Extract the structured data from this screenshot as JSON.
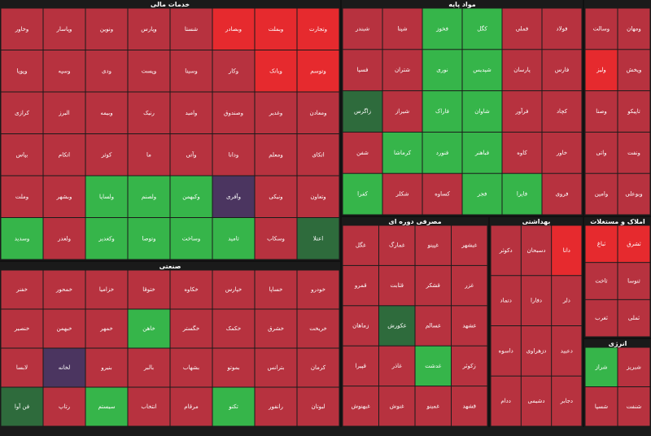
{
  "palette": {
    "r": "#b7323f",
    "b": "#e62a2e",
    "g": "#36b54a",
    "d": "#2e6b3c",
    "p": "#4b3560"
  },
  "sectors": [
    {
      "title": "خدمات مالی",
      "cols": 8,
      "tiles": [
        {
          "label": "وتجارت",
          "c": "b"
        },
        {
          "label": "وبملت",
          "c": "b"
        },
        {
          "label": "وبصادر",
          "c": "b"
        },
        {
          "label": "شستا",
          "c": "r"
        },
        {
          "label": "وپارس",
          "c": "r"
        },
        {
          "label": "ونوین",
          "c": "r"
        },
        {
          "label": "وپاسار",
          "c": "r"
        },
        {
          "label": "وخاور",
          "c": "r"
        },
        {
          "label": "وتوسم",
          "c": "b"
        },
        {
          "label": "وبانک",
          "c": "b"
        },
        {
          "label": "وکار",
          "c": "r"
        },
        {
          "label": "وسینا",
          "c": "r"
        },
        {
          "label": "وپست",
          "c": "r"
        },
        {
          "label": "ودی",
          "c": "r"
        },
        {
          "label": "وسپه",
          "c": "r"
        },
        {
          "label": "وپویا",
          "c": "r"
        },
        {
          "label": "ومعادن",
          "c": "r"
        },
        {
          "label": "وغدیر",
          "c": "r"
        },
        {
          "label": "وصندوق",
          "c": "r"
        },
        {
          "label": "وامید",
          "c": "r"
        },
        {
          "label": "رنیک",
          "c": "r"
        },
        {
          "label": "وبیمه",
          "c": "r"
        },
        {
          "label": "البرز",
          "c": "r"
        },
        {
          "label": "کرازی",
          "c": "r"
        },
        {
          "label": "اتکای",
          "c": "r"
        },
        {
          "label": "ومعلم",
          "c": "r"
        },
        {
          "label": "ودانا",
          "c": "r"
        },
        {
          "label": "وآتی",
          "c": "r"
        },
        {
          "label": "ما",
          "c": "r"
        },
        {
          "label": "کوثر",
          "c": "r"
        },
        {
          "label": "اتکام",
          "c": "r"
        },
        {
          "label": "بپاس",
          "c": "r"
        },
        {
          "label": "وتعاون",
          "c": "r"
        },
        {
          "label": "ونیکی",
          "c": "r"
        },
        {
          "label": "وآفری",
          "c": "p"
        },
        {
          "label": "وکبهمن",
          "c": "g"
        },
        {
          "label": "ولصنم",
          "c": "g"
        },
        {
          "label": "ولساپا",
          "c": "g"
        },
        {
          "label": "وبشهر",
          "c": "r"
        },
        {
          "label": "وملت",
          "c": "r"
        },
        {
          "label": "اعتلا",
          "c": "d"
        },
        {
          "label": "وسکاب",
          "c": "r"
        },
        {
          "label": "ثامید",
          "c": "g"
        },
        {
          "label": "وساخت",
          "c": "g"
        },
        {
          "label": "وتوصا",
          "c": "g"
        },
        {
          "label": "وکغدیر",
          "c": "g"
        },
        {
          "label": "ولغدر",
          "c": "r"
        },
        {
          "label": "وسدید",
          "c": "g"
        }
      ]
    },
    {
      "title": "مواد پایه",
      "cols": 6,
      "tiles": [
        {
          "label": "فولاد",
          "c": "r"
        },
        {
          "label": "فملی",
          "c": "r"
        },
        {
          "label": "کگل",
          "c": "g"
        },
        {
          "label": "فخوز",
          "c": "g"
        },
        {
          "label": "شپنا",
          "c": "r"
        },
        {
          "label": "شبندر",
          "c": "r"
        },
        {
          "label": "فارس",
          "c": "r"
        },
        {
          "label": "پارسان",
          "c": "r"
        },
        {
          "label": "شپدیس",
          "c": "g"
        },
        {
          "label": "نوری",
          "c": "g"
        },
        {
          "label": "شتران",
          "c": "r"
        },
        {
          "label": "فسپا",
          "c": "r"
        },
        {
          "label": "کچاد",
          "c": "r"
        },
        {
          "label": "فرآور",
          "c": "r"
        },
        {
          "label": "شاوان",
          "c": "g"
        },
        {
          "label": "فاراک",
          "c": "g"
        },
        {
          "label": "شیراز",
          "c": "r"
        },
        {
          "label": "زاگرس",
          "c": "d"
        },
        {
          "label": "خاور",
          "c": "r"
        },
        {
          "label": "کاوه",
          "c": "r"
        },
        {
          "label": "فباهنر",
          "c": "g"
        },
        {
          "label": "فنورد",
          "c": "g"
        },
        {
          "label": "کرماشا",
          "c": "g"
        },
        {
          "label": "شفن",
          "c": "r"
        },
        {
          "label": "فروی",
          "c": "r"
        },
        {
          "label": "فایرا",
          "c": "g"
        },
        {
          "label": "فجر",
          "c": "g"
        },
        {
          "label": "کساوه",
          "c": "r"
        },
        {
          "label": "شکلر",
          "c": "r"
        },
        {
          "label": "کفرا",
          "c": "g"
        }
      ]
    },
    {
      "cols": 2,
      "tiles": [
        {
          "label": "ومهان",
          "c": "r"
        },
        {
          "label": "وسالت",
          "c": "r"
        },
        {
          "label": "وپخش",
          "c": "r"
        },
        {
          "label": "ولیز",
          "c": "b"
        },
        {
          "label": "تاپیکو",
          "c": "r"
        },
        {
          "label": "وصنا",
          "c": "r"
        },
        {
          "label": "ونفت",
          "c": "r"
        },
        {
          "label": "واتی",
          "c": "r"
        },
        {
          "label": "وبوعلی",
          "c": "r"
        },
        {
          "label": "وامین",
          "c": "r"
        }
      ]
    },
    {
      "title": "صنعتی",
      "cols": 8,
      "tiles": [
        {
          "label": "خودرو",
          "c": "r"
        },
        {
          "label": "خساپا",
          "c": "r"
        },
        {
          "label": "خپارس",
          "c": "r"
        },
        {
          "label": "خکاوه",
          "c": "r"
        },
        {
          "label": "ختوقا",
          "c": "r"
        },
        {
          "label": "خزامیا",
          "c": "r"
        },
        {
          "label": "خمحور",
          "c": "r"
        },
        {
          "label": "خفنر",
          "c": "r"
        },
        {
          "label": "خریخت",
          "c": "r"
        },
        {
          "label": "خشرق",
          "c": "r"
        },
        {
          "label": "خکمک",
          "c": "r"
        },
        {
          "label": "خگستر",
          "c": "r"
        },
        {
          "label": "خاهن",
          "c": "g"
        },
        {
          "label": "خمهر",
          "c": "r"
        },
        {
          "label": "خبهمن",
          "c": "r"
        },
        {
          "label": "خنصیر",
          "c": "r"
        },
        {
          "label": "کرمان",
          "c": "r"
        },
        {
          "label": "بترانس",
          "c": "r"
        },
        {
          "label": "بموتو",
          "c": "r"
        },
        {
          "label": "بشهاب",
          "c": "r"
        },
        {
          "label": "بالبر",
          "c": "r"
        },
        {
          "label": "بنیرو",
          "c": "r"
        },
        {
          "label": "لخانه",
          "c": "p"
        },
        {
          "label": "لابسا",
          "c": "r"
        },
        {
          "label": "لبوتان",
          "c": "r"
        },
        {
          "label": "رانفور",
          "c": "r"
        },
        {
          "label": "تکنو",
          "c": "g"
        },
        {
          "label": "مرقام",
          "c": "r"
        },
        {
          "label": "انتخاب",
          "c": "r"
        },
        {
          "label": "سیستم",
          "c": "g"
        },
        {
          "label": "رتاپ",
          "c": "r"
        },
        {
          "label": "فن آوا",
          "c": "d"
        }
      ]
    },
    {
      "title": "مصرفی دوره ای",
      "cols": 4,
      "tiles": [
        {
          "label": "غبشهر",
          "c": "r"
        },
        {
          "label": "غپینو",
          "c": "r"
        },
        {
          "label": "غمارگ",
          "c": "r"
        },
        {
          "label": "غگل",
          "c": "r"
        },
        {
          "label": "غزر",
          "c": "r"
        },
        {
          "label": "قشکر",
          "c": "r"
        },
        {
          "label": "قثابت",
          "c": "r"
        },
        {
          "label": "قمرو",
          "c": "r"
        },
        {
          "label": "غشهد",
          "c": "r"
        },
        {
          "label": "غسالم",
          "c": "r"
        },
        {
          "label": "غکورش",
          "c": "d"
        },
        {
          "label": "زماهان",
          "c": "r"
        },
        {
          "label": "زکوثر",
          "c": "r"
        },
        {
          "label": "غدشت",
          "c": "g"
        },
        {
          "label": "غاذر",
          "c": "r"
        },
        {
          "label": "قپیرا",
          "c": "r"
        },
        {
          "label": "قشهد",
          "c": "r"
        },
        {
          "label": "غمینو",
          "c": "r"
        },
        {
          "label": "غنوش",
          "c": "r"
        },
        {
          "label": "غبهنوش",
          "c": "r"
        }
      ]
    },
    {
      "title": "بهداشتی",
      "cols": 3,
      "tiles": [
        {
          "label": "دانا",
          "c": "b"
        },
        {
          "label": "دسبحان",
          "c": "r"
        },
        {
          "label": "دکوثر",
          "c": "r"
        },
        {
          "label": "دلر",
          "c": "r"
        },
        {
          "label": "دفارا",
          "c": "r"
        },
        {
          "label": "دتماد",
          "c": "r"
        },
        {
          "label": "دعبید",
          "c": "r"
        },
        {
          "label": "دزهراوی",
          "c": "r"
        },
        {
          "label": "داسوه",
          "c": "r"
        },
        {
          "label": "دجابر",
          "c": "r"
        },
        {
          "label": "دشیمی",
          "c": "r"
        },
        {
          "label": "ددام",
          "c": "r"
        }
      ]
    },
    {
      "title": "املاک و مستغلات",
      "cols": 2,
      "tiles": [
        {
          "label": "ثشرق",
          "c": "b"
        },
        {
          "label": "ثباغ",
          "c": "b"
        },
        {
          "label": "ثنوسا",
          "c": "r"
        },
        {
          "label": "ثاخت",
          "c": "r"
        },
        {
          "label": "ثملی",
          "c": "r"
        },
        {
          "label": "ثغرب",
          "c": "r"
        }
      ]
    },
    {
      "title": "انرژی",
      "cols": 2,
      "tiles": [
        {
          "label": "شبریز",
          "c": "r"
        },
        {
          "label": "شراز",
          "c": "g"
        },
        {
          "label": "شنفت",
          "c": "r"
        },
        {
          "label": "شسپا",
          "c": "r"
        }
      ]
    }
  ]
}
